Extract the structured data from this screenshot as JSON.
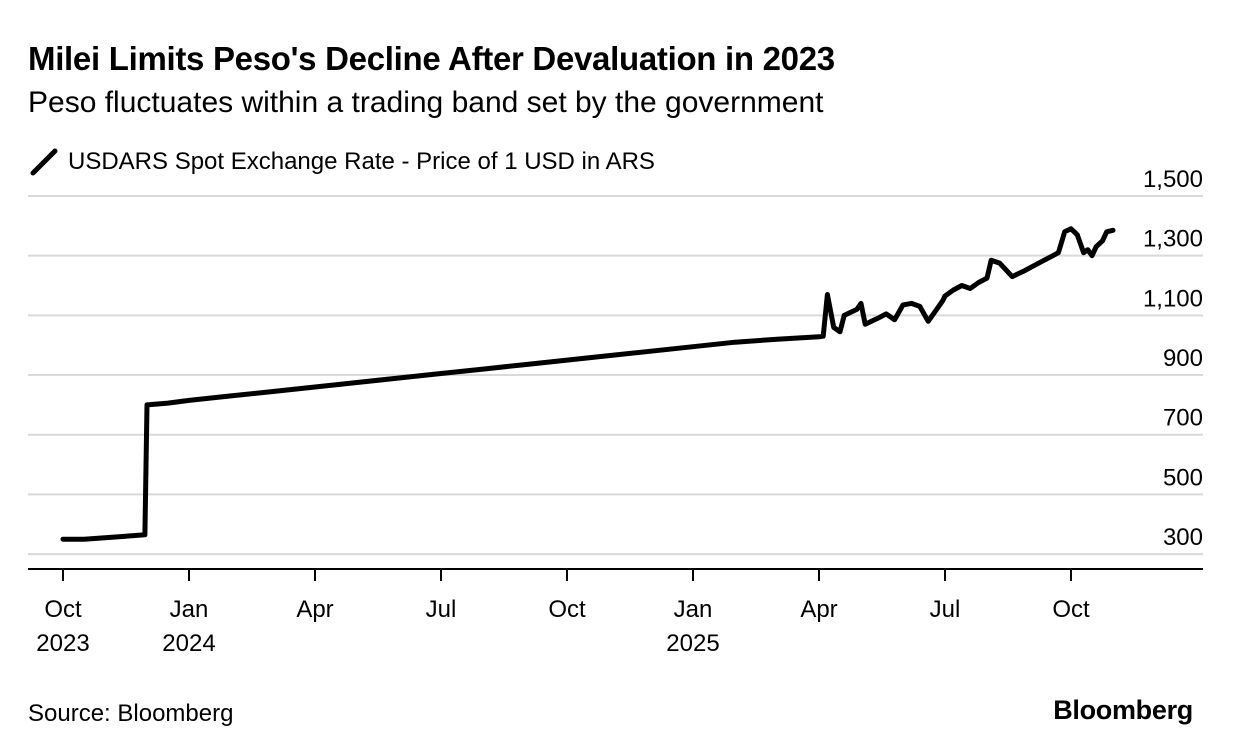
{
  "title": "Milei Limits Peso's Decline After Devaluation in 2023",
  "subtitle": "Peso fluctuates within a trading band set by the government",
  "source": "Source: Bloomberg",
  "brand": "Bloomberg",
  "colors": {
    "line": "#000000",
    "grid": "#d9d9d9",
    "axis": "#000000"
  },
  "chart_data": {
    "type": "line",
    "title": "Milei Limits Peso's Decline After Devaluation in 2023",
    "subtitle": "Peso fluctuates within a trading band set by the government",
    "xlabel": "",
    "ylabel": "",
    "ylim": [
      250,
      1500
    ],
    "yticks": [
      300,
      500,
      700,
      900,
      1100,
      1300,
      1500
    ],
    "ytick_labels": [
      "300",
      "500",
      "700",
      "900",
      "1,100",
      "1,300",
      "1,500"
    ],
    "xlim": [
      -0.1,
      25.8
    ],
    "xticks": [
      {
        "x": 0,
        "line1": "Oct",
        "line2": "2023"
      },
      {
        "x": 3,
        "line1": "Jan",
        "line2": "2024"
      },
      {
        "x": 6,
        "line1": "Apr",
        "line2": ""
      },
      {
        "x": 9,
        "line1": "Jul",
        "line2": ""
      },
      {
        "x": 12,
        "line1": "Oct",
        "line2": ""
      },
      {
        "x": 15,
        "line1": "Jan",
        "line2": "2025"
      },
      {
        "x": 18,
        "line1": "Apr",
        "line2": ""
      },
      {
        "x": 21,
        "line1": "Jul",
        "line2": ""
      },
      {
        "x": 24,
        "line1": "Oct",
        "line2": ""
      }
    ],
    "x_unit": "months since Oct 2023",
    "legend": [
      {
        "name": "USDARS Spot Exchange Rate - Price of 1 USD in ARS",
        "position": "top-left"
      }
    ],
    "grid": true,
    "series": [
      {
        "name": "USDARS Spot Exchange Rate - Price of 1 USD in ARS",
        "x": [
          0,
          0.5,
          1.0,
          1.5,
          1.95,
          2.0,
          2.5,
          3.0,
          4.0,
          5.0,
          6.0,
          7.0,
          8.0,
          9.0,
          10.0,
          11.0,
          12.0,
          13.0,
          14.0,
          15.0,
          16.0,
          17.0,
          17.6,
          18.0,
          18.1,
          18.2,
          18.35,
          18.5,
          18.6,
          18.75,
          18.9,
          19.0,
          19.1,
          19.25,
          19.4,
          19.6,
          19.8,
          20.0,
          20.2,
          20.4,
          20.6,
          20.8,
          20.95,
          21.0,
          21.2,
          21.4,
          21.6,
          21.8,
          22.0,
          22.1,
          22.3,
          22.6,
          22.9,
          23.1,
          23.3,
          23.5,
          23.7,
          23.85,
          24.0,
          24.15,
          24.3,
          24.4,
          24.5,
          24.6,
          24.75,
          24.85,
          25.0
        ],
        "values": [
          350,
          350,
          355,
          360,
          365,
          800,
          806,
          815,
          830,
          845,
          860,
          875,
          890,
          905,
          920,
          935,
          950,
          965,
          980,
          995,
          1010,
          1020,
          1025,
          1028,
          1030,
          1170,
          1060,
          1045,
          1100,
          1110,
          1120,
          1140,
          1070,
          1080,
          1090,
          1105,
          1085,
          1135,
          1140,
          1130,
          1080,
          1120,
          1150,
          1165,
          1185,
          1200,
          1190,
          1210,
          1225,
          1285,
          1275,
          1230,
          1250,
          1265,
          1280,
          1295,
          1310,
          1380,
          1390,
          1370,
          1310,
          1320,
          1300,
          1330,
          1350,
          1380,
          1385
        ]
      }
    ]
  }
}
